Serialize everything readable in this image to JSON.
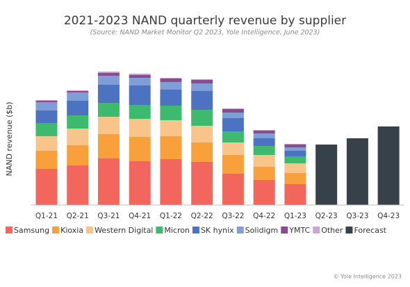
{
  "chart_data": {
    "type": "stacked_bar",
    "title": "2021-2023 NAND quarterly revenue by supplier",
    "subtitle": "(Source: NAND Market Monitor Q2 2023, Yole Intelligence, June 2023)",
    "y_label": "NAND revenue ($b)",
    "credit": "© Yole Intelligence 2023",
    "categories": [
      "Q1-21",
      "Q2-21",
      "Q3-21",
      "Q4-21",
      "Q1-22",
      "Q2-22",
      "Q3-22",
      "Q4-22",
      "Q1-23",
      "Q2-23",
      "Q3-23",
      "Q4-23"
    ],
    "series": [
      {
        "name": "Samsung",
        "color": "#f2665e",
        "values": [
          5.2,
          5.7,
          6.7,
          6.3,
          6.6,
          6.2,
          4.5,
          3.6,
          3.0,
          null,
          null,
          null
        ]
      },
      {
        "name": "Kioxia",
        "color": "#f7a03c",
        "values": [
          2.6,
          2.9,
          3.5,
          3.5,
          3.3,
          2.8,
          2.7,
          1.9,
          1.6,
          null,
          null,
          null
        ]
      },
      {
        "name": "Western Digital",
        "color": "#f9c48a",
        "values": [
          2.1,
          2.4,
          2.5,
          2.6,
          2.3,
          2.4,
          1.8,
          1.7,
          1.4,
          null,
          null,
          null
        ]
      },
      {
        "name": "Micron",
        "color": "#3dba6d",
        "values": [
          1.9,
          1.9,
          2.0,
          2.0,
          2.1,
          2.3,
          1.6,
          1.3,
          1.0,
          null,
          null,
          null
        ]
      },
      {
        "name": "SK hynix",
        "color": "#4b73c2",
        "values": [
          1.8,
          2.1,
          2.6,
          2.8,
          2.3,
          2.7,
          1.9,
          1.1,
          0.8,
          null,
          null,
          null
        ]
      },
      {
        "name": "Solidigm",
        "color": "#7f9ed8",
        "values": [
          1.2,
          1.2,
          1.3,
          1.1,
          1.1,
          1.1,
          0.8,
          0.7,
          0.5,
          null,
          null,
          null
        ]
      },
      {
        "name": "YMTC",
        "color": "#8a4b8e",
        "values": [
          0.2,
          0.2,
          0.4,
          0.4,
          0.5,
          0.5,
          0.5,
          0.4,
          0.4,
          null,
          null,
          null
        ]
      },
      {
        "name": "Other",
        "color": "#c8a5d6",
        "values": [
          0.1,
          0.1,
          0.2,
          0.2,
          0.1,
          0.1,
          0.1,
          0.1,
          0.1,
          null,
          null,
          null
        ]
      },
      {
        "name": "Forecast",
        "color": "#36414a",
        "values": [
          null,
          null,
          null,
          null,
          null,
          null,
          null,
          null,
          null,
          8.7,
          9.6,
          11.3
        ]
      }
    ],
    "ylim": [
      0,
      20
    ],
    "grid": false
  }
}
